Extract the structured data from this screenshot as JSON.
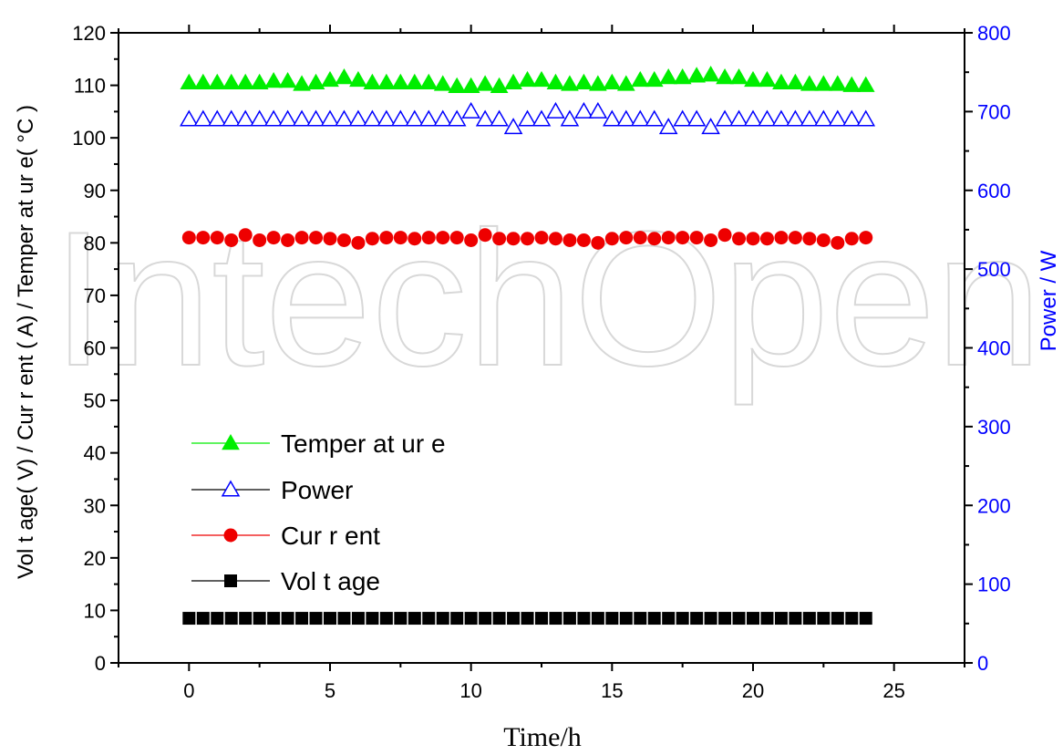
{
  "chart_data": {
    "type": "scatter",
    "title": "",
    "xlabel": "Time/h",
    "ylabel_left": "Vol t age( V) / Cur r ent ( A) / Temper at ur e( °C )",
    "ylabel_right": "Power / W",
    "xlim": [
      -2.5,
      27.5
    ],
    "ylim_left": [
      0,
      120
    ],
    "ylim_right": [
      0,
      800
    ],
    "x_ticks": [
      0,
      5,
      10,
      15,
      20,
      25
    ],
    "y_ticks_left": [
      0,
      10,
      20,
      30,
      40,
      50,
      60,
      70,
      80,
      90,
      100,
      110,
      120
    ],
    "y_ticks_right": [
      0,
      100,
      200,
      300,
      400,
      500,
      600,
      700,
      800
    ],
    "legend_position": "lower-left",
    "x": [
      0,
      0.5,
      1,
      1.5,
      2,
      2.5,
      3,
      3.5,
      4,
      4.5,
      5,
      5.5,
      6,
      6.5,
      7,
      7.5,
      8,
      8.5,
      9,
      9.5,
      10,
      10.5,
      11,
      11.5,
      12,
      12.5,
      13,
      13.5,
      14,
      14.5,
      15,
      15.5,
      16,
      16.5,
      17,
      17.5,
      18,
      18.5,
      19,
      19.5,
      20,
      20.5,
      21,
      21.5,
      22,
      22.5,
      23,
      23.5,
      24
    ],
    "series": [
      {
        "name": "Temper at ur e",
        "axis": "left",
        "marker": "triangle-filled",
        "color": "#00ee00",
        "values": [
          110.5,
          110.5,
          110.5,
          110.5,
          110.5,
          110.5,
          110.8,
          110.8,
          110.2,
          110.5,
          111.0,
          111.5,
          111.0,
          110.5,
          110.5,
          110.5,
          110.5,
          110.5,
          110.2,
          109.8,
          109.8,
          110.2,
          109.8,
          110.5,
          111.0,
          111.0,
          110.5,
          110.2,
          110.5,
          110.2,
          110.5,
          110.2,
          111.0,
          111.0,
          111.5,
          111.5,
          111.8,
          112.0,
          111.5,
          111.5,
          111.0,
          111.0,
          110.5,
          110.5,
          110.2,
          110.2,
          110.2,
          110.0,
          110.0
        ]
      },
      {
        "name": "Power",
        "axis": "right",
        "marker": "triangle-open",
        "color": "#0000ff",
        "values": [
          690,
          690,
          690,
          690,
          690,
          690,
          690,
          690,
          690,
          690,
          690,
          690,
          690,
          690,
          690,
          690,
          690,
          690,
          690,
          690,
          700,
          690,
          690,
          680,
          690,
          690,
          700,
          690,
          700,
          700,
          690,
          690,
          690,
          690,
          680,
          690,
          690,
          680,
          690,
          690,
          690,
          690,
          690,
          690,
          690,
          690,
          690,
          690,
          690
        ]
      },
      {
        "name": "Cur r ent",
        "axis": "left",
        "marker": "circle-filled",
        "color": "#ee0000",
        "values": [
          81.0,
          81.0,
          81.0,
          80.5,
          81.5,
          80.5,
          81.0,
          80.5,
          81.0,
          81.0,
          80.8,
          80.5,
          80.0,
          80.8,
          81.0,
          81.0,
          80.8,
          81.0,
          81.0,
          81.0,
          80.5,
          81.5,
          80.8,
          80.8,
          80.8,
          81.0,
          80.8,
          80.5,
          80.5,
          80.0,
          80.8,
          81.0,
          81.0,
          80.8,
          81.0,
          81.0,
          81.0,
          80.5,
          81.5,
          80.8,
          80.8,
          80.8,
          81.0,
          81.0,
          80.8,
          80.5,
          80.0,
          80.8,
          81.0
        ]
      },
      {
        "name": "Vol t age",
        "axis": "left",
        "marker": "square-filled",
        "color": "#000000",
        "values": [
          8.5,
          8.5,
          8.5,
          8.5,
          8.5,
          8.5,
          8.5,
          8.5,
          8.5,
          8.5,
          8.5,
          8.5,
          8.5,
          8.5,
          8.5,
          8.5,
          8.5,
          8.5,
          8.5,
          8.5,
          8.5,
          8.5,
          8.5,
          8.5,
          8.5,
          8.5,
          8.5,
          8.5,
          8.5,
          8.5,
          8.5,
          8.5,
          8.5,
          8.5,
          8.5,
          8.5,
          8.5,
          8.5,
          8.5,
          8.5,
          8.5,
          8.5,
          8.5,
          8.5,
          8.5,
          8.5,
          8.5,
          8.5,
          8.5
        ]
      }
    ],
    "legend_order": [
      "Temper at ur e",
      "Power",
      "Cur r ent",
      "Vol t age"
    ],
    "watermark_text": "IntechOpen"
  }
}
